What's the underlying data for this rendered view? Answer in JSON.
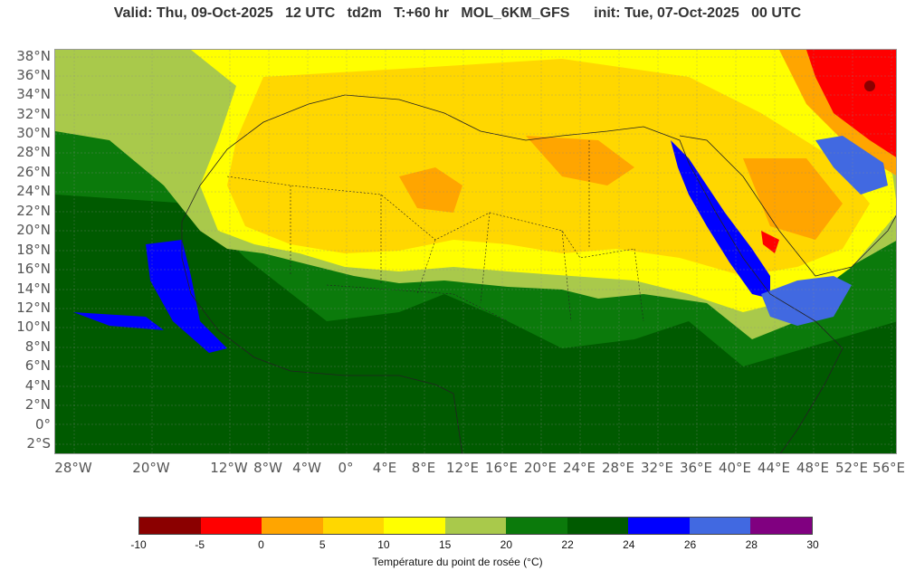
{
  "header": {
    "title": "Valid: Thu, 09-Oct-2025   12 UTC   td2m   T:+60 hr   MOL_6KM_GFS      init: Tue, 07-Oct-2025   00 UTC"
  },
  "map": {
    "lat_labels": [
      "38°N",
      "36°N",
      "34°N",
      "32°N",
      "30°N",
      "28°N",
      "26°N",
      "24°N",
      "22°N",
      "20°N",
      "18°N",
      "16°N",
      "14°N",
      "12°N",
      "10°N",
      "8°N",
      "6°N",
      "4°N",
      "2°N",
      "0°",
      "2°S"
    ],
    "lon_labels": [
      "28°W",
      "20°W",
      "12°W",
      "8°W",
      "4°W",
      "0°",
      "4°E",
      "8°E",
      "12°E",
      "16°E",
      "20°E",
      "24°E",
      "28°E",
      "32°E",
      "36°E",
      "40°E",
      "44°E",
      "48°E",
      "52°E",
      "56°E"
    ],
    "gridlines": true
  },
  "legend": {
    "ticks": [
      "-10",
      "-5",
      "0",
      "5",
      "10",
      "15",
      "20",
      "22",
      "24",
      "26",
      "28",
      "30"
    ],
    "colors": [
      "#8b0000",
      "#ff0000",
      "#ffa500",
      "#ffd700",
      "#ffff00",
      "#a9c94b",
      "#0b7a0b",
      "#005a00",
      "#0000ff",
      "#4169e1",
      "#800080"
    ],
    "label": "Température du point de rosée (°C)"
  }
}
